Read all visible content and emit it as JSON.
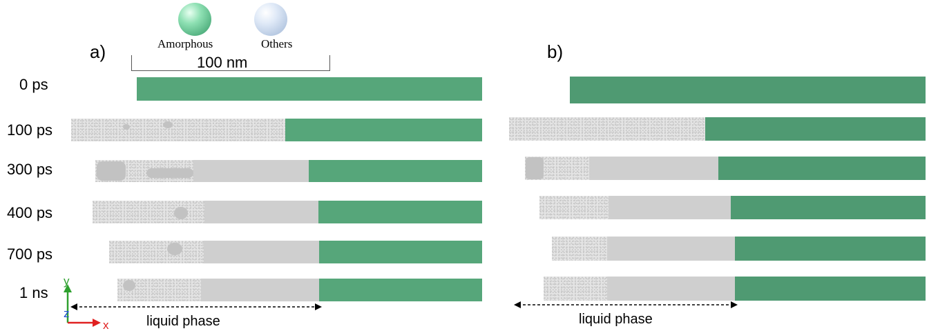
{
  "panels": {
    "a_label": "a)",
    "b_label": "b)"
  },
  "legend": {
    "amorphous_label": "Amorphous",
    "others_label": "Others",
    "amorphous_color": "#6fcf98",
    "others_color": "#c9d9ee"
  },
  "scale_bar": {
    "label": "100 nm"
  },
  "time_labels": [
    "0 ps",
    "100 ps",
    "300 ps",
    "400 ps",
    "700 ps",
    "1 ns"
  ],
  "liquid_phase_label_a": "liquid phase",
  "liquid_phase_label_b": "liquid phase",
  "axes": {
    "y": "y",
    "z": "z",
    "x": "x"
  },
  "colors": {
    "amorphous": "#56a67a",
    "other": "#cfcfcf"
  }
}
